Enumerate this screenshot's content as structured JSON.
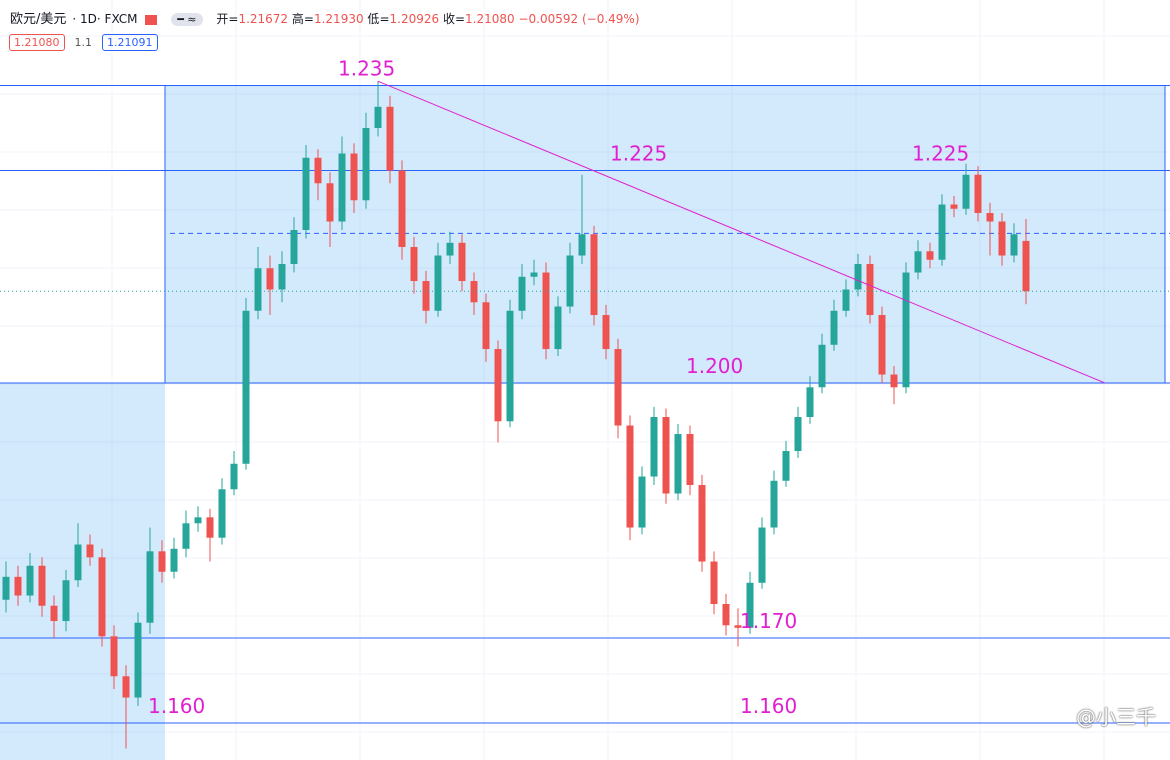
{
  "chart_data": {
    "type": "candlestick",
    "header": {
      "symbol": "欧元/美元",
      "interval": "1D",
      "source": "FXCM",
      "fields": [
        {
          "label": "开",
          "value": "1.21672"
        },
        {
          "label": "高",
          "value": "1.21930"
        },
        {
          "label": "低",
          "value": "1.20926"
        },
        {
          "label": "收",
          "value": "1.21080"
        }
      ],
      "change": "−0.00592 (−0.49%)",
      "badges": [
        "1.21080",
        "1.1",
        "1.21091"
      ]
    },
    "watermark": "@小三千",
    "ylim": [
      1.15565,
      1.24506
    ],
    "up_color": "#26a69a",
    "down_color": "#ef5350",
    "series": {
      "open": [
        1.1745,
        1.1772,
        1.175,
        1.1785,
        1.1738,
        1.172,
        1.1768,
        1.181,
        1.1795,
        1.1702,
        1.1655,
        1.163,
        1.1718,
        1.1802,
        1.1778,
        1.1805,
        1.1835,
        1.1842,
        1.1818,
        1.1875,
        1.1905,
        1.2085,
        1.2135,
        1.211,
        1.214,
        1.218,
        1.2265,
        1.2235,
        1.219,
        1.227,
        1.2215,
        1.23,
        1.2325,
        1.225,
        1.216,
        1.212,
        1.2085,
        1.215,
        1.2165,
        1.212,
        1.2095,
        1.204,
        1.1955,
        1.2085,
        1.2125,
        1.213,
        1.204,
        1.209,
        1.215,
        1.2175,
        1.208,
        1.204,
        1.195,
        1.183,
        1.189,
        1.196,
        1.187,
        1.194,
        1.188,
        1.179,
        1.174,
        1.1715,
        1.1712,
        1.1765,
        1.183,
        1.1885,
        1.192,
        1.196,
        1.1995,
        1.2045,
        1.2085,
        1.211,
        1.214,
        1.208,
        1.201,
        1.1995,
        1.213,
        1.2155,
        1.2145,
        1.221,
        1.2205,
        1.2245,
        1.22,
        1.219,
        1.215,
        1.21672
      ],
      "high": [
        1.179,
        1.1785,
        1.18,
        1.1795,
        1.175,
        1.178,
        1.1835,
        1.1822,
        1.1805,
        1.1715,
        1.1668,
        1.173,
        1.183,
        1.1815,
        1.1818,
        1.185,
        1.1855,
        1.1852,
        1.1888,
        1.192,
        1.21,
        1.216,
        1.215,
        1.2155,
        1.2195,
        1.228,
        1.2275,
        1.2248,
        1.229,
        1.2282,
        1.2318,
        1.2355,
        1.2338,
        1.2262,
        1.2172,
        1.2132,
        1.2165,
        1.2178,
        1.2175,
        1.213,
        1.2105,
        1.205,
        1.2098,
        1.214,
        1.2145,
        1.2142,
        1.2102,
        1.2165,
        1.2245,
        1.2185,
        1.2092,
        1.2052,
        1.1962,
        1.1902,
        1.1972,
        1.197,
        1.1952,
        1.195,
        1.1892,
        1.1802,
        1.1752,
        1.1735,
        1.1778,
        1.1842,
        1.1897,
        1.1932,
        1.1972,
        1.2008,
        1.2058,
        1.2098,
        1.2122,
        1.2152,
        1.215,
        1.209,
        1.202,
        1.2142,
        1.2168,
        1.2165,
        1.2222,
        1.222,
        1.2258,
        1.2255,
        1.2212,
        1.22,
        1.2188,
        1.2193
      ],
      "low": [
        1.173,
        1.1738,
        1.1742,
        1.1725,
        1.17,
        1.1708,
        1.176,
        1.1785,
        1.169,
        1.164,
        1.157,
        1.162,
        1.1705,
        1.1765,
        1.177,
        1.1795,
        1.1825,
        1.179,
        1.181,
        1.1868,
        1.1898,
        1.2075,
        1.208,
        1.2095,
        1.213,
        1.217,
        1.2215,
        1.216,
        1.218,
        1.22,
        1.2205,
        1.229,
        1.2235,
        1.2145,
        1.2105,
        1.207,
        1.2078,
        1.214,
        1.2108,
        1.208,
        1.2025,
        1.193,
        1.1948,
        1.2075,
        1.2115,
        1.2028,
        1.2032,
        1.2082,
        1.214,
        1.2068,
        1.2028,
        1.1935,
        1.1815,
        1.1822,
        1.188,
        1.1858,
        1.1862,
        1.1868,
        1.1778,
        1.1728,
        1.1703,
        1.169,
        1.1705,
        1.1758,
        1.1822,
        1.1878,
        1.1912,
        1.1952,
        1.1988,
        1.2038,
        1.2078,
        1.2102,
        1.207,
        1.2,
        1.1975,
        1.1988,
        1.2122,
        1.2135,
        1.2138,
        1.2195,
        1.2198,
        1.219,
        1.215,
        1.2138,
        1.2142,
        1.20926
      ],
      "close": [
        1.1772,
        1.175,
        1.1785,
        1.1738,
        1.172,
        1.1768,
        1.181,
        1.1795,
        1.1702,
        1.1655,
        1.163,
        1.1718,
        1.1802,
        1.1778,
        1.1805,
        1.1835,
        1.1842,
        1.1818,
        1.1875,
        1.1905,
        1.2085,
        1.2135,
        1.211,
        1.214,
        1.218,
        1.2265,
        1.2235,
        1.219,
        1.227,
        1.2215,
        1.23,
        1.2325,
        1.225,
        1.216,
        1.212,
        1.2085,
        1.215,
        1.2165,
        1.212,
        1.2095,
        1.204,
        1.1955,
        1.2085,
        1.2125,
        1.213,
        1.204,
        1.209,
        1.215,
        1.2175,
        1.208,
        1.204,
        1.195,
        1.183,
        1.189,
        1.196,
        1.187,
        1.194,
        1.188,
        1.179,
        1.174,
        1.1715,
        1.1712,
        1.1765,
        1.183,
        1.1885,
        1.192,
        1.196,
        1.1995,
        1.2045,
        1.2085,
        1.211,
        1.214,
        1.208,
        1.201,
        1.1995,
        1.213,
        1.2155,
        1.2145,
        1.221,
        1.2205,
        1.2245,
        1.22,
        1.219,
        1.215,
        1.2175,
        1.2108
      ]
    },
    "levels": [
      1.235,
      1.225,
      1.2,
      1.17,
      1.16
    ],
    "level_color": "#2962ff",
    "range": [
      1.2,
      1.235
    ],
    "dashed_level": 1.2176,
    "annotations": [
      1.235,
      1.225,
      1.225,
      {
        "value": 1.2,
        "label": "1.200"
      },
      {
        "value": 1.17,
        "label": "1.170"
      },
      {
        "value": 1.16,
        "label": "1.160"
      },
      {
        "value": 1.16,
        "label": "1.160"
      }
    ],
    "annotation_color": "#e020d0"
  }
}
